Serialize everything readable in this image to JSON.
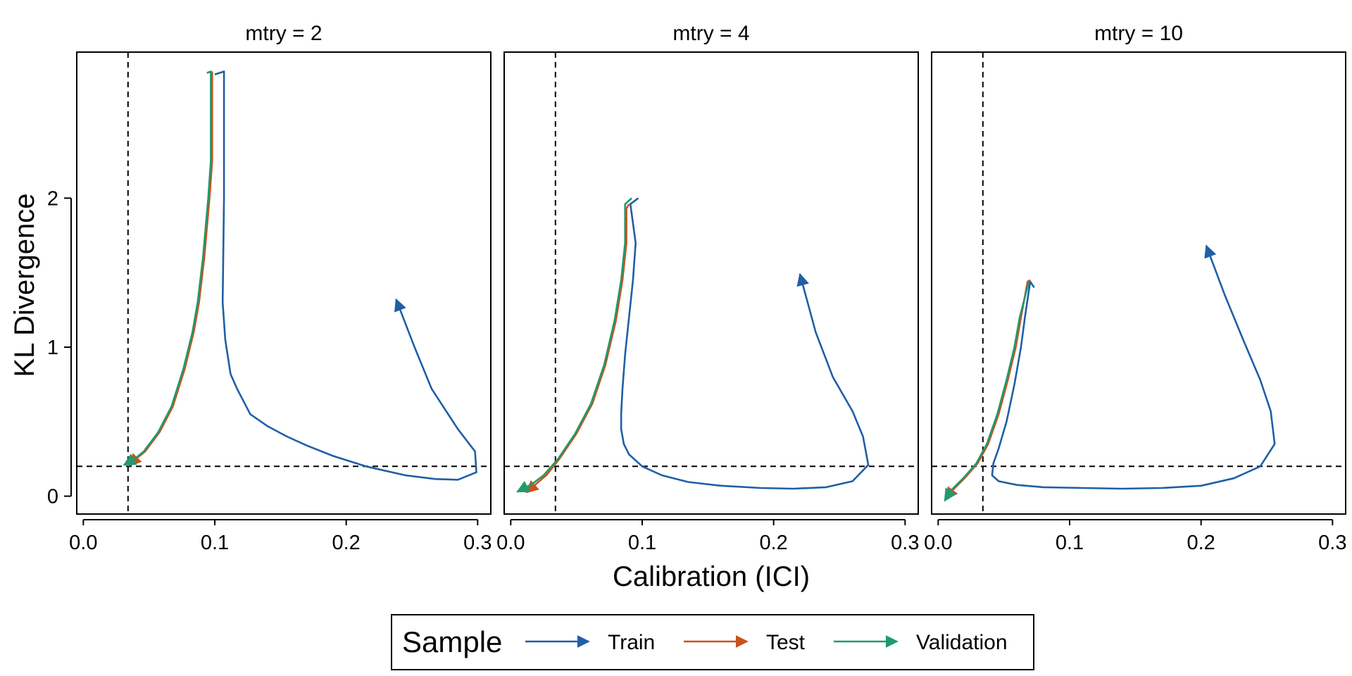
{
  "chart_data": {
    "type": "line",
    "xlabel": "Calibration (ICI)",
    "ylabel": "KL Divergence",
    "xlim": [
      -0.005,
      0.31
    ],
    "ylim": [
      -0.12,
      2.98
    ],
    "x_ticks": [
      0.0,
      0.1,
      0.2,
      0.3
    ],
    "x_tick_labels": [
      "0.0",
      "0.1",
      "0.2",
      "0.3"
    ],
    "y_ticks": [
      0,
      1,
      2
    ],
    "y_tick_labels": [
      "0",
      "1",
      "2"
    ],
    "reference_lines": {
      "vertical_x": 0.034,
      "horizontal_y": 0.2,
      "style": "dashed"
    },
    "grid": false,
    "legend": {
      "title": "Sample",
      "position": "bottom",
      "entries": [
        {
          "name": "Train",
          "color": "#1f5fa6"
        },
        {
          "name": "Test",
          "color": "#c9521c"
        },
        {
          "name": "Validation",
          "color": "#1f9a6e"
        }
      ]
    },
    "panels": [
      {
        "title": "mtry = 2",
        "series": [
          {
            "name": "Train",
            "color": "#1f5fa6",
            "points": [
              [
                0.1,
                2.83
              ],
              [
                0.107,
                2.85
              ],
              [
                0.107,
                2.0
              ],
              [
                0.106,
                1.3
              ],
              [
                0.108,
                1.05
              ],
              [
                0.112,
                0.82
              ],
              [
                0.117,
                0.72
              ],
              [
                0.127,
                0.55
              ],
              [
                0.14,
                0.47
              ],
              [
                0.155,
                0.4
              ],
              [
                0.17,
                0.34
              ],
              [
                0.19,
                0.27
              ],
              [
                0.215,
                0.2
              ],
              [
                0.245,
                0.14
              ],
              [
                0.268,
                0.115
              ],
              [
                0.285,
                0.11
              ],
              [
                0.299,
                0.16
              ],
              [
                0.298,
                0.3
              ],
              [
                0.285,
                0.45
              ],
              [
                0.265,
                0.72
              ],
              [
                0.252,
                1.0
              ],
              [
                0.238,
                1.32
              ]
            ]
          },
          {
            "name": "Test",
            "color": "#c9521c",
            "points": [
              [
                0.098,
                2.85
              ],
              [
                0.098,
                2.25
              ],
              [
                0.096,
                2.0
              ],
              [
                0.092,
                1.6
              ],
              [
                0.088,
                1.3
              ],
              [
                0.084,
                1.1
              ],
              [
                0.077,
                0.85
              ],
              [
                0.068,
                0.6
              ],
              [
                0.058,
                0.43
              ],
              [
                0.047,
                0.3
              ],
              [
                0.04,
                0.25
              ],
              [
                0.035,
                0.205
              ]
            ]
          },
          {
            "name": "Validation",
            "color": "#1f9a6e",
            "points": [
              [
                0.094,
                2.84
              ],
              [
                0.097,
                2.85
              ],
              [
                0.097,
                2.25
              ],
              [
                0.095,
                2.0
              ],
              [
                0.091,
                1.6
              ],
              [
                0.087,
                1.3
              ],
              [
                0.083,
                1.1
              ],
              [
                0.076,
                0.85
              ],
              [
                0.067,
                0.6
              ],
              [
                0.057,
                0.43
              ],
              [
                0.046,
                0.3
              ],
              [
                0.039,
                0.25
              ],
              [
                0.031,
                0.21
              ]
            ]
          }
        ]
      },
      {
        "title": "mtry = 4",
        "series": [
          {
            "name": "Train",
            "color": "#1f5fa6",
            "points": [
              [
                0.097,
                2.0
              ],
              [
                0.091,
                1.96
              ],
              [
                0.095,
                1.7
              ],
              [
                0.093,
                1.45
              ],
              [
                0.09,
                1.2
              ],
              [
                0.087,
                0.95
              ],
              [
                0.085,
                0.72
              ],
              [
                0.084,
                0.55
              ],
              [
                0.084,
                0.45
              ],
              [
                0.086,
                0.35
              ],
              [
                0.09,
                0.28
              ],
              [
                0.1,
                0.2
              ],
              [
                0.115,
                0.14
              ],
              [
                0.135,
                0.095
              ],
              [
                0.16,
                0.07
              ],
              [
                0.19,
                0.055
              ],
              [
                0.215,
                0.05
              ],
              [
                0.24,
                0.06
              ],
              [
                0.26,
                0.1
              ],
              [
                0.272,
                0.21
              ],
              [
                0.268,
                0.4
              ],
              [
                0.26,
                0.57
              ],
              [
                0.245,
                0.8
              ],
              [
                0.232,
                1.1
              ],
              [
                0.22,
                1.49
              ]
            ]
          },
          {
            "name": "Test",
            "color": "#c9521c",
            "points": [
              [
                0.09,
                1.96
              ],
              [
                0.088,
                1.93
              ],
              [
                0.088,
                1.7
              ],
              [
                0.085,
                1.45
              ],
              [
                0.08,
                1.18
              ],
              [
                0.072,
                0.88
              ],
              [
                0.062,
                0.62
              ],
              [
                0.05,
                0.42
              ],
              [
                0.037,
                0.25
              ],
              [
                0.027,
                0.14
              ],
              [
                0.019,
                0.08
              ],
              [
                0.012,
                0.025
              ]
            ]
          },
          {
            "name": "Validation",
            "color": "#1f9a6e",
            "points": [
              [
                0.092,
                2.0
              ],
              [
                0.087,
                1.96
              ],
              [
                0.087,
                1.7
              ],
              [
                0.084,
                1.45
              ],
              [
                0.079,
                1.18
              ],
              [
                0.071,
                0.88
              ],
              [
                0.061,
                0.62
              ],
              [
                0.049,
                0.42
              ],
              [
                0.036,
                0.25
              ],
              [
                0.025,
                0.14
              ],
              [
                0.016,
                0.08
              ],
              [
                0.005,
                0.03
              ]
            ]
          }
        ]
      },
      {
        "title": "mtry = 10",
        "series": [
          {
            "name": "Train",
            "color": "#1f5fa6",
            "points": [
              [
                0.073,
                1.4
              ],
              [
                0.07,
                1.44
              ],
              [
                0.066,
                1.2
              ],
              [
                0.063,
                1.0
              ],
              [
                0.058,
                0.75
              ],
              [
                0.052,
                0.5
              ],
              [
                0.046,
                0.32
              ],
              [
                0.042,
                0.22
              ],
              [
                0.041,
                0.14
              ],
              [
                0.046,
                0.1
              ],
              [
                0.06,
                0.075
              ],
              [
                0.08,
                0.06
              ],
              [
                0.11,
                0.055
              ],
              [
                0.14,
                0.05
              ],
              [
                0.17,
                0.055
              ],
              [
                0.2,
                0.07
              ],
              [
                0.225,
                0.12
              ],
              [
                0.245,
                0.2
              ],
              [
                0.256,
                0.35
              ],
              [
                0.253,
                0.57
              ],
              [
                0.245,
                0.78
              ],
              [
                0.232,
                1.05
              ],
              [
                0.218,
                1.35
              ],
              [
                0.204,
                1.68
              ]
            ]
          },
          {
            "name": "Test",
            "color": "#c9521c",
            "points": [
              [
                0.07,
                1.45
              ],
              [
                0.068,
                1.44
              ],
              [
                0.063,
                1.2
              ],
              [
                0.059,
                1.0
              ],
              [
                0.053,
                0.78
              ],
              [
                0.046,
                0.55
              ],
              [
                0.038,
                0.35
              ],
              [
                0.03,
                0.22
              ],
              [
                0.02,
                0.12
              ],
              [
                0.011,
                0.04
              ],
              [
                0.006,
                -0.02
              ]
            ]
          },
          {
            "name": "Validation",
            "color": "#1f9a6e",
            "points": [
              [
                0.069,
                1.44
              ],
              [
                0.062,
                1.2
              ],
              [
                0.058,
                1.0
              ],
              [
                0.052,
                0.78
              ],
              [
                0.045,
                0.55
              ],
              [
                0.037,
                0.35
              ],
              [
                0.029,
                0.22
              ],
              [
                0.019,
                0.12
              ],
              [
                0.01,
                0.04
              ],
              [
                0.005,
                -0.03
              ]
            ]
          }
        ]
      }
    ]
  }
}
